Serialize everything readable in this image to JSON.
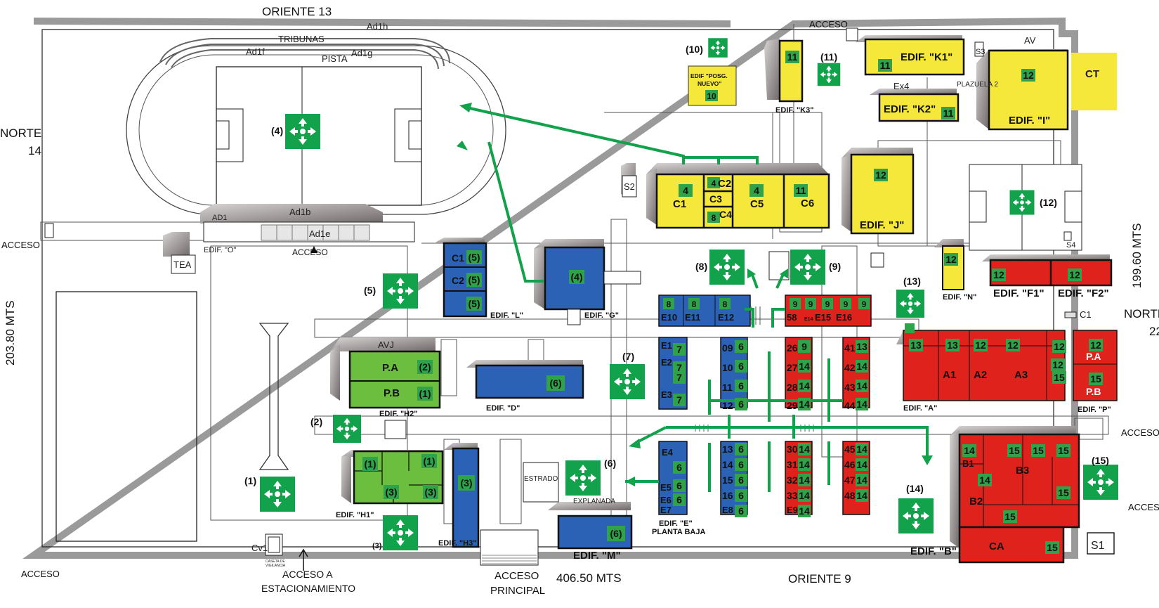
{
  "streets": {
    "top": "ORIENTE 13",
    "bottom": "ORIENTE 9",
    "left_a": "NORTE",
    "left_b": "14",
    "right_a": "NORTE",
    "right_b": "22"
  },
  "dimensions": {
    "left": "203.80 MTS",
    "right": "199.60 MTS",
    "bottom": "406.50 MTS"
  },
  "access": {
    "top": "ACCESO",
    "left": "ACCESO",
    "bottom_left": "ACCESO",
    "odeon": "ACCESO",
    "right_1": "ACCESO",
    "right_2": "ACCESO",
    "parking_a": "ACCESO A",
    "parking_b": "ESTACIONAMIENTO",
    "main_a": "ACCESO",
    "main_b": "PRINCIPAL"
  },
  "stadium": {
    "tribunas": "TRIBUNAS",
    "pista": "PISTA",
    "ad1h": "Ad1h",
    "ad1f": "Ad1f",
    "ad1g": "Ad1g",
    "ad1": "AD1",
    "ad1b": "Ad1b",
    "ad1e": "Ad1e",
    "edif_o": "EDIF. \"O\""
  },
  "misc": {
    "tea": "TEA",
    "s2": "S2",
    "s3": "S3",
    "s4": "S4",
    "s1": "S1",
    "c1_small": "C1",
    "cv1": "Cv1",
    "caseta": "CASETA DE",
    "vigilancia": "VIGILANCIA",
    "estrado": "ESTRADO",
    "explanada": "EXPLANADA",
    "plazuela": "PLAZUELA 2",
    "av": "AV",
    "avj": "AVJ",
    "ex4": "Ex4",
    "ct": "CT"
  },
  "assembly_points": [
    {
      "label": "(1)"
    },
    {
      "label": "(2)"
    },
    {
      "label": "(3)"
    },
    {
      "label": "(4)"
    },
    {
      "label": "(5)"
    },
    {
      "label": "(6)"
    },
    {
      "label": "(7)"
    },
    {
      "label": "(8)"
    },
    {
      "label": "(9)"
    },
    {
      "label": "(10)"
    },
    {
      "label": "(11)"
    },
    {
      "label": "(12)"
    },
    {
      "label": "(13)"
    },
    {
      "label": "(14)"
    },
    {
      "label": "(15)"
    }
  ],
  "buildings": {
    "k1": "EDIF. \"K1\"",
    "k2": "EDIF. \"K2\"",
    "k3": "EDIF. \"K3\"",
    "i": "EDIF. \"I\"",
    "j": "EDIF. \"J\"",
    "n": "EDIF. \"N\"",
    "f1": "EDIF. \"F1\"",
    "f2": "EDIF. \"F2\"",
    "a": "EDIF. \"A\"",
    "p": "EDIF. \"P\"",
    "b": "EDIF. \"B\"",
    "l": "EDIF. \"L\"",
    "g": "EDIF. \"G\"",
    "h2": "EDIF. \"H2\"",
    "h1": "EDIF. \"H1\"",
    "h3": "EDIF. \"H3\"",
    "d": "EDIF. \"D\"",
    "m": "EDIF. \"M\"",
    "e": "EDIF. \"E\"",
    "e_sub": "PLANTA BAJA",
    "posg_a": "EDIF \"POSG.",
    "posg_b": "NUEVO\""
  },
  "rooms": {
    "c1": "C1",
    "c2": "C2",
    "c3": "C3",
    "c4": "C4",
    "c5": "C5",
    "c6": "C6",
    "l_c1": "C1",
    "l_c2": "C2",
    "pa": "P.A",
    "pb": "P.B",
    "pa2": "P.A",
    "pb2": "P.B",
    "a1": "A1",
    "a2": "A2",
    "a3": "A3",
    "b1": "B1",
    "b2": "B2",
    "b3": "B3",
    "ca": "CA",
    "e10": "E10",
    "e11": "E11",
    "e12": "E12",
    "r58": "58",
    "e14": "E14",
    "e15": "E15",
    "e16": "E16",
    "e1": "E1",
    "e2": "E2",
    "e3": "E3",
    "e4": "E4",
    "e5": "E5",
    "e6": "E6",
    "e7": "E7",
    "e8": "E8",
    "e9": "E9"
  },
  "badges": [
    {
      "t": "11"
    },
    {
      "t": "11"
    },
    {
      "t": "11"
    },
    {
      "t": "12"
    },
    {
      "t": "10"
    },
    {
      "t": "4"
    },
    {
      "t": "4"
    },
    {
      "t": "8"
    },
    {
      "t": "4"
    },
    {
      "t": "11"
    },
    {
      "t": "12"
    },
    {
      "t": "12"
    },
    {
      "t": "12"
    },
    {
      "t": "12"
    },
    {
      "t": "12"
    },
    {
      "t": "13"
    },
    {
      "t": "13"
    },
    {
      "t": "12"
    },
    {
      "t": "12"
    },
    {
      "t": "12"
    },
    {
      "t": "15"
    },
    {
      "t": "12"
    },
    {
      "t": "15"
    },
    {
      "t": "14"
    },
    {
      "t": "15"
    },
    {
      "t": "15"
    },
    {
      "t": "15"
    },
    {
      "t": "14"
    },
    {
      "t": "15"
    },
    {
      "t": "15"
    },
    {
      "t": "15"
    },
    {
      "t": "(5)"
    },
    {
      "t": "(5)"
    },
    {
      "t": "(5)"
    },
    {
      "t": "(4)"
    },
    {
      "t": "(2)"
    },
    {
      "t": "(1)"
    },
    {
      "t": "(6)"
    },
    {
      "t": "(1)"
    },
    {
      "t": "(1)"
    },
    {
      "t": "(3)"
    },
    {
      "t": "(3)"
    },
    {
      "t": "(3)"
    },
    {
      "t": "(6)"
    },
    {
      "t": "8"
    },
    {
      "t": "8"
    },
    {
      "t": "8"
    },
    {
      "t": "9"
    },
    {
      "t": "9"
    },
    {
      "t": "9"
    },
    {
      "t": "9"
    },
    {
      "t": "9"
    },
    {
      "t": "7"
    },
    {
      "t": "7"
    },
    {
      "t": "7"
    },
    {
      "t": "7"
    },
    {
      "t": "6"
    },
    {
      "t": "6"
    },
    {
      "t": "6"
    },
    {
      "t": "6"
    },
    {
      "t": "9"
    },
    {
      "t": "14"
    },
    {
      "t": "14"
    },
    {
      "t": "14"
    },
    {
      "t": "13"
    },
    {
      "t": "14"
    },
    {
      "t": "14"
    },
    {
      "t": "14"
    },
    {
      "t": "6"
    },
    {
      "t": "6"
    },
    {
      "t": "6"
    },
    {
      "t": "6"
    },
    {
      "t": "6"
    },
    {
      "t": "6"
    },
    {
      "t": "6"
    },
    {
      "t": "6"
    },
    {
      "t": "14"
    },
    {
      "t": "14"
    },
    {
      "t": "14"
    },
    {
      "t": "14"
    },
    {
      "t": "14"
    },
    {
      "t": "14"
    },
    {
      "t": "14"
    },
    {
      "t": "14"
    },
    {
      "t": "14"
    }
  ],
  "row_numbers": {
    "n09": "09",
    "n10": "10",
    "n11": "11",
    "n12": "12",
    "n13": "13",
    "n14": "14",
    "n15": "15",
    "n16": "16",
    "n26": "26",
    "n27": "27",
    "n28": "28",
    "n29": "29",
    "n30": "30",
    "n31": "31",
    "n32": "32",
    "n33": "33",
    "n41": "41",
    "n42": "42",
    "n43": "43",
    "n44": "44",
    "n45": "45",
    "n46": "46",
    "n47": "47",
    "n48": "48"
  },
  "colors": {
    "yellow": "#f6e83a",
    "blue": "#2c62b5",
    "red": "#e0221d",
    "green_bldg": "#6cbf3e",
    "green_badge": "#2fa24a",
    "green_route": "#11a24b",
    "shadow": "#8a8080"
  }
}
